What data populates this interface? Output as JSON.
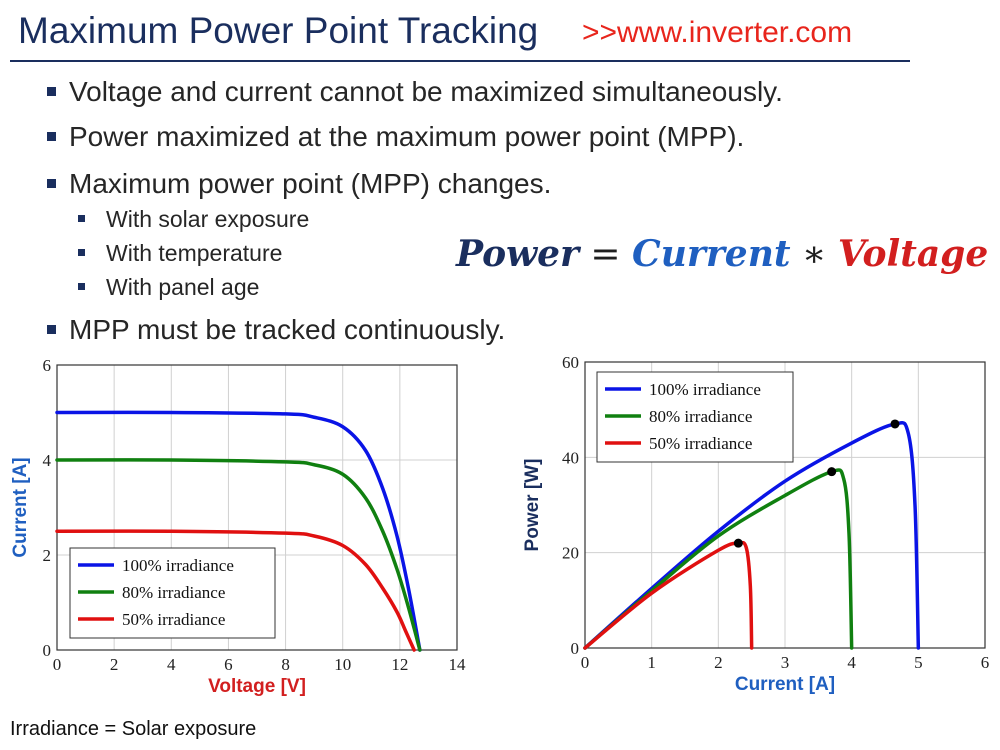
{
  "slide": {
    "title": "Maximum Power Point Tracking",
    "watermark": ">>www.inverter.com",
    "bullets": [
      "Voltage and current cannot be maximized simultaneously.",
      "Power maximized at the maximum power point (MPP).",
      "Maximum power point (MPP) changes.",
      "MPP must be tracked continuously."
    ],
    "sub_bullets": [
      "With solar exposure",
      "With temperature",
      "With panel age"
    ],
    "formula": {
      "lhs": "Power",
      "eq": " = ",
      "term1": "Current",
      "op": " ∗ ",
      "term2": "Voltage"
    },
    "footnote": "Irradiance = Solar exposure",
    "colors": {
      "title": "#1a2e5e",
      "watermark": "#e8251c",
      "current": "#1f5fc0",
      "voltage": "#d21f1f",
      "axis_title": "#1a2e5e"
    }
  },
  "chart_data": [
    {
      "type": "line",
      "xlabel": "Voltage [V]",
      "ylabel": "Current [A]",
      "xlim": [
        0,
        14
      ],
      "ylim": [
        0,
        6
      ],
      "xticks": [
        0,
        2,
        4,
        6,
        8,
        10,
        12,
        14
      ],
      "yticks": [
        0,
        2,
        4,
        6
      ],
      "grid": true,
      "legend": "bottom-left",
      "series": [
        {
          "name": "100% irradiance",
          "color": "#0a14e6",
          "x": [
            0,
            4,
            8,
            9,
            10,
            10.8,
            11.4,
            11.9,
            12.3,
            12.7
          ],
          "y": [
            5,
            5,
            4.97,
            4.9,
            4.7,
            4.2,
            3.4,
            2.4,
            1.3,
            0
          ]
        },
        {
          "name": "80% irradiance",
          "color": "#108010",
          "x": [
            0,
            4,
            8,
            9,
            10,
            10.8,
            11.4,
            11.9,
            12.3,
            12.7
          ],
          "y": [
            4,
            4,
            3.96,
            3.9,
            3.7,
            3.2,
            2.5,
            1.7,
            0.9,
            0
          ]
        },
        {
          "name": "50% irradiance",
          "color": "#e01010",
          "x": [
            0,
            4,
            8,
            9,
            10,
            10.8,
            11.4,
            11.9,
            12.2,
            12.5
          ],
          "y": [
            2.5,
            2.5,
            2.46,
            2.4,
            2.2,
            1.8,
            1.3,
            0.8,
            0.4,
            0
          ]
        }
      ]
    },
    {
      "type": "line",
      "xlabel": "Current [A]",
      "ylabel": "Power [W]",
      "xlim": [
        0,
        6
      ],
      "ylim": [
        0,
        60
      ],
      "xticks": [
        0,
        1,
        2,
        3,
        4,
        5,
        6
      ],
      "yticks": [
        0,
        20,
        40,
        60
      ],
      "grid": true,
      "legend": "top-left",
      "series": [
        {
          "name": "100% irradiance",
          "color": "#0a14e6",
          "x": [
            0,
            1,
            2,
            3,
            4,
            4.65,
            4.85,
            4.95,
            5.0
          ],
          "y": [
            0,
            12.5,
            24.5,
            35,
            43,
            47,
            45,
            30,
            0
          ],
          "mpp": [
            4.65,
            47
          ]
        },
        {
          "name": "80% irradiance",
          "color": "#108010",
          "x": [
            0,
            1,
            2,
            3,
            3.7,
            3.88,
            3.96,
            4.0
          ],
          "y": [
            0,
            12,
            23.5,
            32,
            37,
            35.5,
            24,
            0
          ],
          "mpp": [
            3.7,
            37
          ]
        },
        {
          "name": "50% irradiance",
          "color": "#e01010",
          "x": [
            0,
            1,
            2,
            2.3,
            2.42,
            2.48,
            2.5
          ],
          "y": [
            0,
            11.5,
            20.5,
            22,
            21,
            13,
            0
          ],
          "mpp": [
            2.3,
            22
          ]
        }
      ]
    }
  ]
}
